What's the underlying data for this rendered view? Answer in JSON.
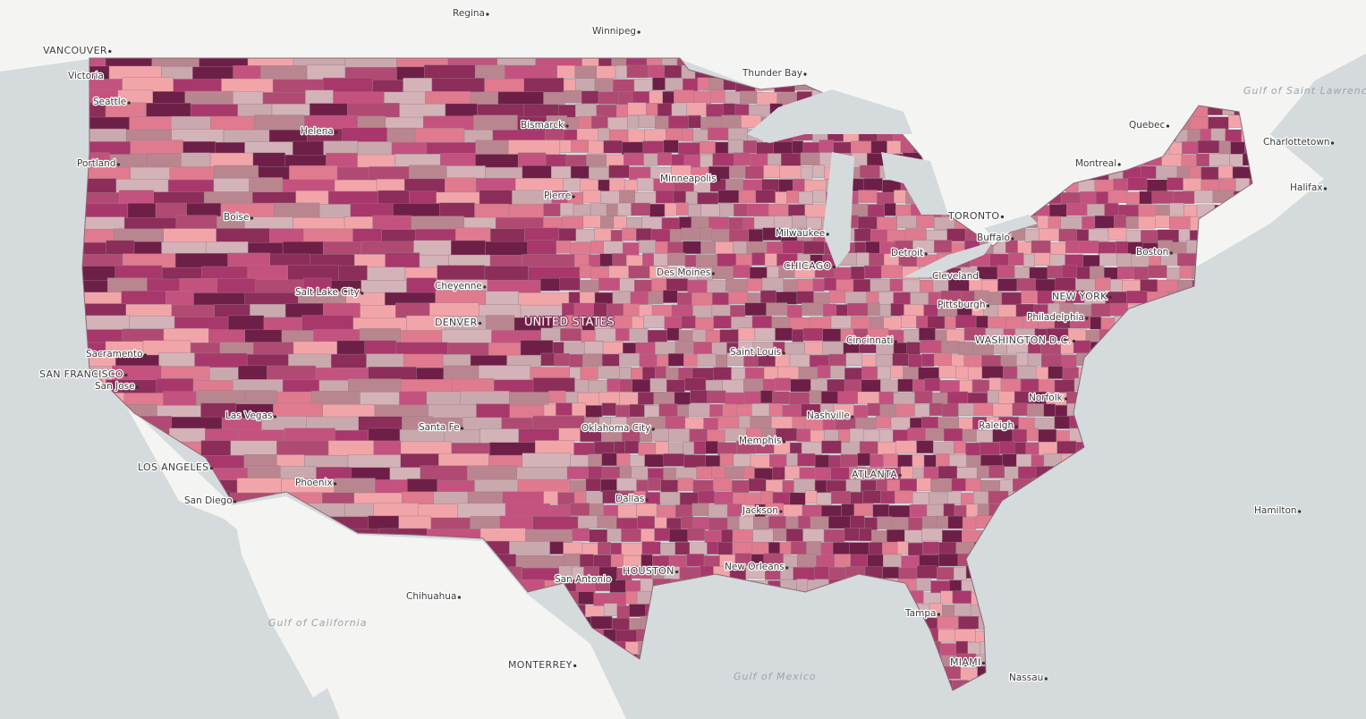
{
  "map_labels": {
    "country": "UNITED STATES",
    "cities": [
      "Regina",
      "Winnipeg",
      "VANCOUVER",
      "Victoria",
      "Seattle",
      "Portland",
      "Helena",
      "Bismarck",
      "Thunder Bay",
      "Quebec",
      "Charlottetown",
      "Halifax",
      "Montreal",
      "Minneapolis",
      "Pierre",
      "Boise",
      "TORONTO",
      "Buffalo",
      "Milwaukee",
      "Detroit",
      "Boston",
      "CHICAGO",
      "Des Moines",
      "Cleveland",
      "Salt Lake City",
      "Cheyenne",
      "NEW YORK",
      "Pittsburgh",
      "Philadelphia",
      "DENVER",
      "WASHINGTON D.C.",
      "Cincinnati",
      "Sacramento",
      "SAN FRANCISCO",
      "San Jose",
      "Saint Louis",
      "Norfolk",
      "Las Vegas",
      "Nashville",
      "Oklahoma City",
      "Santa Fe",
      "Raleigh",
      "Memphis",
      "LOS ANGELES",
      "ATLANTA",
      "Phoenix",
      "San Diego",
      "Dallas",
      "Jackson",
      "Hamilton",
      "HOUSTON",
      "New Orleans",
      "San Antonio",
      "Chihuahua",
      "Tampa",
      "MIAMI",
      "Nassau",
      "MONTERREY"
    ],
    "water": [
      "Gulf of Saint Lawrence",
      "Gulf of California",
      "Gulf of Mexico"
    ]
  }
}
